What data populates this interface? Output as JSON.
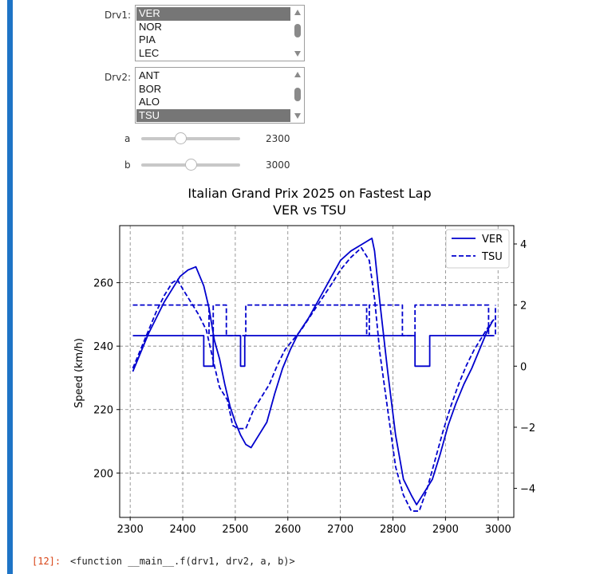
{
  "widgets": {
    "drv1": {
      "label": "Drv1:",
      "options": [
        "VER",
        "NOR",
        "PIA",
        "LEC"
      ],
      "selected": "VER"
    },
    "drv2": {
      "label": "Drv2:",
      "options": [
        "ANT",
        "BOR",
        "ALO",
        "TSU"
      ],
      "selected": "TSU"
    },
    "slider_a": {
      "label": "a",
      "value": "2300",
      "min": 2300,
      "max": 3000,
      "position": 0.4
    },
    "slider_b": {
      "label": "b",
      "value": "3000",
      "min": 2300,
      "max": 3000,
      "position": 0.5
    }
  },
  "output": {
    "prompt": "[12]:",
    "text": "<function __main__.f(drv1, drv2, a, b)>"
  },
  "chart_data": {
    "type": "line",
    "title": "Italian Grand Prix 2025 on Fastest Lap",
    "subtitle": "VER vs TSU",
    "ylabel": "Speed (km/h)",
    "xlim": [
      2280,
      3030
    ],
    "ylim": [
      186,
      278
    ],
    "y2lim": [
      -4.95,
      4.6
    ],
    "x_ticks": [
      "2300",
      "2400",
      "2500",
      "2600",
      "2700",
      "2800",
      "2900",
      "3000"
    ],
    "y_ticks": [
      "200",
      "220",
      "240",
      "260"
    ],
    "y2_ticks": [
      "−4",
      "−2",
      "0",
      "2",
      "4"
    ],
    "grid": true,
    "legend": "top-right",
    "color": "#0000cd",
    "series": [
      {
        "name": "VER",
        "style": "solid",
        "axis": "left",
        "x": [
          2305,
          2320,
          2335,
          2350,
          2365,
          2380,
          2395,
          2410,
          2425,
          2440,
          2450,
          2460,
          2470,
          2480,
          2490,
          2500,
          2510,
          2520,
          2530,
          2545,
          2560,
          2575,
          2590,
          2605,
          2620,
          2640,
          2660,
          2680,
          2700,
          2720,
          2740,
          2760,
          2765,
          2775,
          2790,
          2805,
          2820,
          2835,
          2845,
          2860,
          2875,
          2890,
          2905,
          2920,
          2935,
          2950,
          2965,
          2980,
          2990
        ],
        "y": [
          232,
          238,
          244,
          249,
          254,
          258,
          262,
          264,
          265,
          259,
          252,
          242,
          236,
          228,
          221,
          216,
          212,
          209,
          208,
          212,
          216,
          225,
          233,
          239,
          244,
          249,
          255,
          261,
          267,
          270,
          272,
          274,
          270,
          254,
          232,
          212,
          198,
          193,
          190,
          194,
          198,
          206,
          215,
          222,
          228,
          233,
          239,
          245,
          248
        ]
      },
      {
        "name": "TSU",
        "style": "dashed",
        "axis": "left",
        "x": [
          2305,
          2320,
          2335,
          2350,
          2365,
          2380,
          2390,
          2400,
          2415,
          2430,
          2445,
          2460,
          2470,
          2485,
          2495,
          2505,
          2520,
          2535,
          2550,
          2565,
          2580,
          2595,
          2610,
          2625,
          2645,
          2665,
          2685,
          2700,
          2720,
          2740,
          2755,
          2765,
          2775,
          2790,
          2805,
          2820,
          2835,
          2850,
          2865,
          2880,
          2895,
          2910,
          2925,
          2940,
          2955,
          2970,
          2985,
          2995
        ],
        "y": [
          233,
          239,
          245,
          251,
          256,
          260,
          261,
          258,
          254,
          250,
          245,
          234,
          227,
          223,
          215,
          214,
          214,
          220,
          224,
          228,
          234,
          239,
          242,
          245,
          250,
          255,
          260,
          264,
          268,
          271,
          267,
          255,
          238,
          220,
          202,
          193,
          188,
          188,
          195,
          204,
          213,
          221,
          228,
          234,
          239,
          243,
          247,
          249
        ]
      },
      {
        "name": "VER",
        "style": "solid",
        "axis": "right",
        "x": [
          2305,
          2430,
          2440,
          2450,
          2458,
          2500,
          2510,
          2518,
          2835,
          2842,
          2860,
          2870,
          2990
        ],
        "y": [
          1,
          1,
          0,
          0,
          1,
          1,
          0,
          1,
          1,
          0,
          0,
          1,
          1
        ]
      },
      {
        "name": "TSU",
        "style": "dashed",
        "axis": "right",
        "x": [
          2305,
          2395,
          2450,
          2458,
          2478,
          2483,
          2515,
          2520,
          2743,
          2750,
          2755,
          2808,
          2818,
          2836,
          2842,
          2982,
          2995
        ],
        "y": [
          2,
          2,
          1,
          2,
          2,
          1,
          1,
          2,
          2,
          1,
          2,
          2,
          1,
          1,
          2,
          1,
          2
        ]
      }
    ]
  }
}
